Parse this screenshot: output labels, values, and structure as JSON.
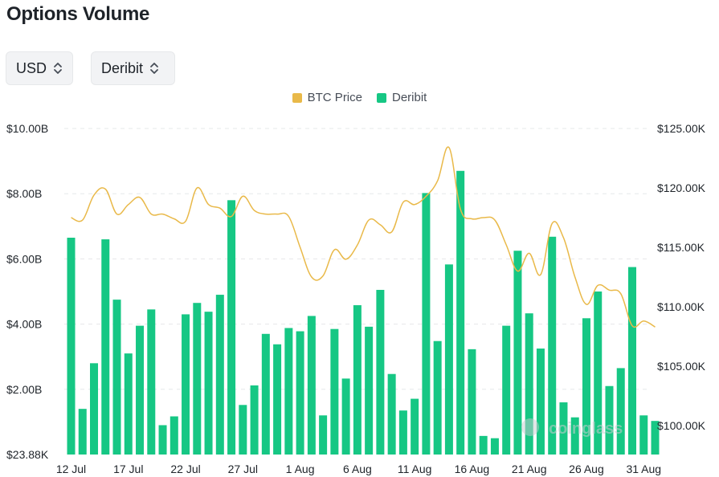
{
  "page": {
    "title": "Options Volume"
  },
  "controls": {
    "currency": {
      "value": "USD",
      "icon": "chevron-updown-icon"
    },
    "exchange": {
      "value": "Deribit",
      "icon": "chevron-updown-icon"
    }
  },
  "colors": {
    "btc_price": "#e9b949",
    "deribit": "#16c784",
    "grid": "#e6e8ea"
  },
  "watermark": "coinglass",
  "chart_data": {
    "type": "bar",
    "legend": [
      "BTC Price",
      "Deribit"
    ],
    "legend_position": "top-center",
    "x_tick_labels": [
      "12 Jul",
      "17 Jul",
      "22 Jul",
      "27 Jul",
      "1 Aug",
      "6 Aug",
      "11 Aug",
      "16 Aug",
      "21 Aug",
      "26 Aug",
      "31 Aug"
    ],
    "y_left_tick_labels": [
      "$23.88K",
      "$2.00B",
      "$4.00B",
      "$6.00B",
      "$8.00B",
      "$10.00B"
    ],
    "y_right_tick_labels": [
      "$100.00K",
      "$105.00K",
      "$110.00K",
      "$115.00K",
      "$120.00K",
      "$125.00K"
    ],
    "y_left_range": [
      0,
      10000000000
    ],
    "y_right_range": [
      98000,
      125000
    ],
    "grid": true,
    "categories": [
      "12 Jul",
      "13 Jul",
      "14 Jul",
      "15 Jul",
      "16 Jul",
      "17 Jul",
      "18 Jul",
      "19 Jul",
      "20 Jul",
      "21 Jul",
      "22 Jul",
      "23 Jul",
      "24 Jul",
      "25 Jul",
      "26 Jul",
      "27 Jul",
      "28 Jul",
      "29 Jul",
      "30 Jul",
      "31 Jul",
      "1 Aug",
      "2 Aug",
      "3 Aug",
      "4 Aug",
      "5 Aug",
      "6 Aug",
      "7 Aug",
      "8 Aug",
      "9 Aug",
      "10 Aug",
      "11 Aug",
      "12 Aug",
      "13 Aug",
      "14 Aug",
      "15 Aug",
      "16 Aug",
      "17 Aug",
      "18 Aug",
      "19 Aug",
      "20 Aug",
      "21 Aug",
      "22 Aug",
      "23 Aug",
      "24 Aug",
      "25 Aug",
      "26 Aug",
      "27 Aug",
      "28 Aug",
      "29 Aug",
      "30 Aug",
      "31 Aug",
      "1 Sep"
    ],
    "series": [
      {
        "name": "Deribit",
        "type": "bar",
        "axis": "left",
        "values": [
          6.65,
          1.4,
          2.8,
          6.6,
          4.75,
          3.1,
          3.95,
          4.45,
          0.9,
          1.17,
          4.3,
          4.65,
          4.38,
          4.9,
          7.8,
          1.52,
          2.12,
          3.7,
          3.38,
          3.88,
          3.78,
          4.25,
          1.2,
          3.85,
          2.33,
          4.58,
          3.92,
          5.05,
          2.47,
          1.35,
          1.71,
          8.02,
          3.48,
          5.83,
          8.7,
          3.23,
          0.57,
          0.5,
          3.95,
          6.25,
          4.33,
          3.25,
          6.68,
          1.6,
          1.14,
          4.18,
          5.0,
          2.1,
          2.65,
          5.75,
          1.2,
          1.03
        ]
      },
      {
        "name": "BTC Price",
        "type": "line",
        "axis": "right",
        "values": [
          117500,
          117300,
          119400,
          119900,
          117800,
          118600,
          119200,
          117800,
          117800,
          117400,
          117200,
          120000,
          118600,
          118300,
          117600,
          119300,
          118100,
          117800,
          117800,
          117600,
          115000,
          112500,
          112600,
          114800,
          114000,
          115200,
          117300,
          116900,
          116300,
          118800,
          118600,
          119300,
          120600,
          123400,
          118200,
          117400,
          117500,
          117300,
          115200,
          113000,
          114500,
          112700,
          117000,
          115800,
          112500,
          110200,
          111800,
          111400,
          111100,
          108400,
          108800,
          108300
        ]
      }
    ]
  }
}
